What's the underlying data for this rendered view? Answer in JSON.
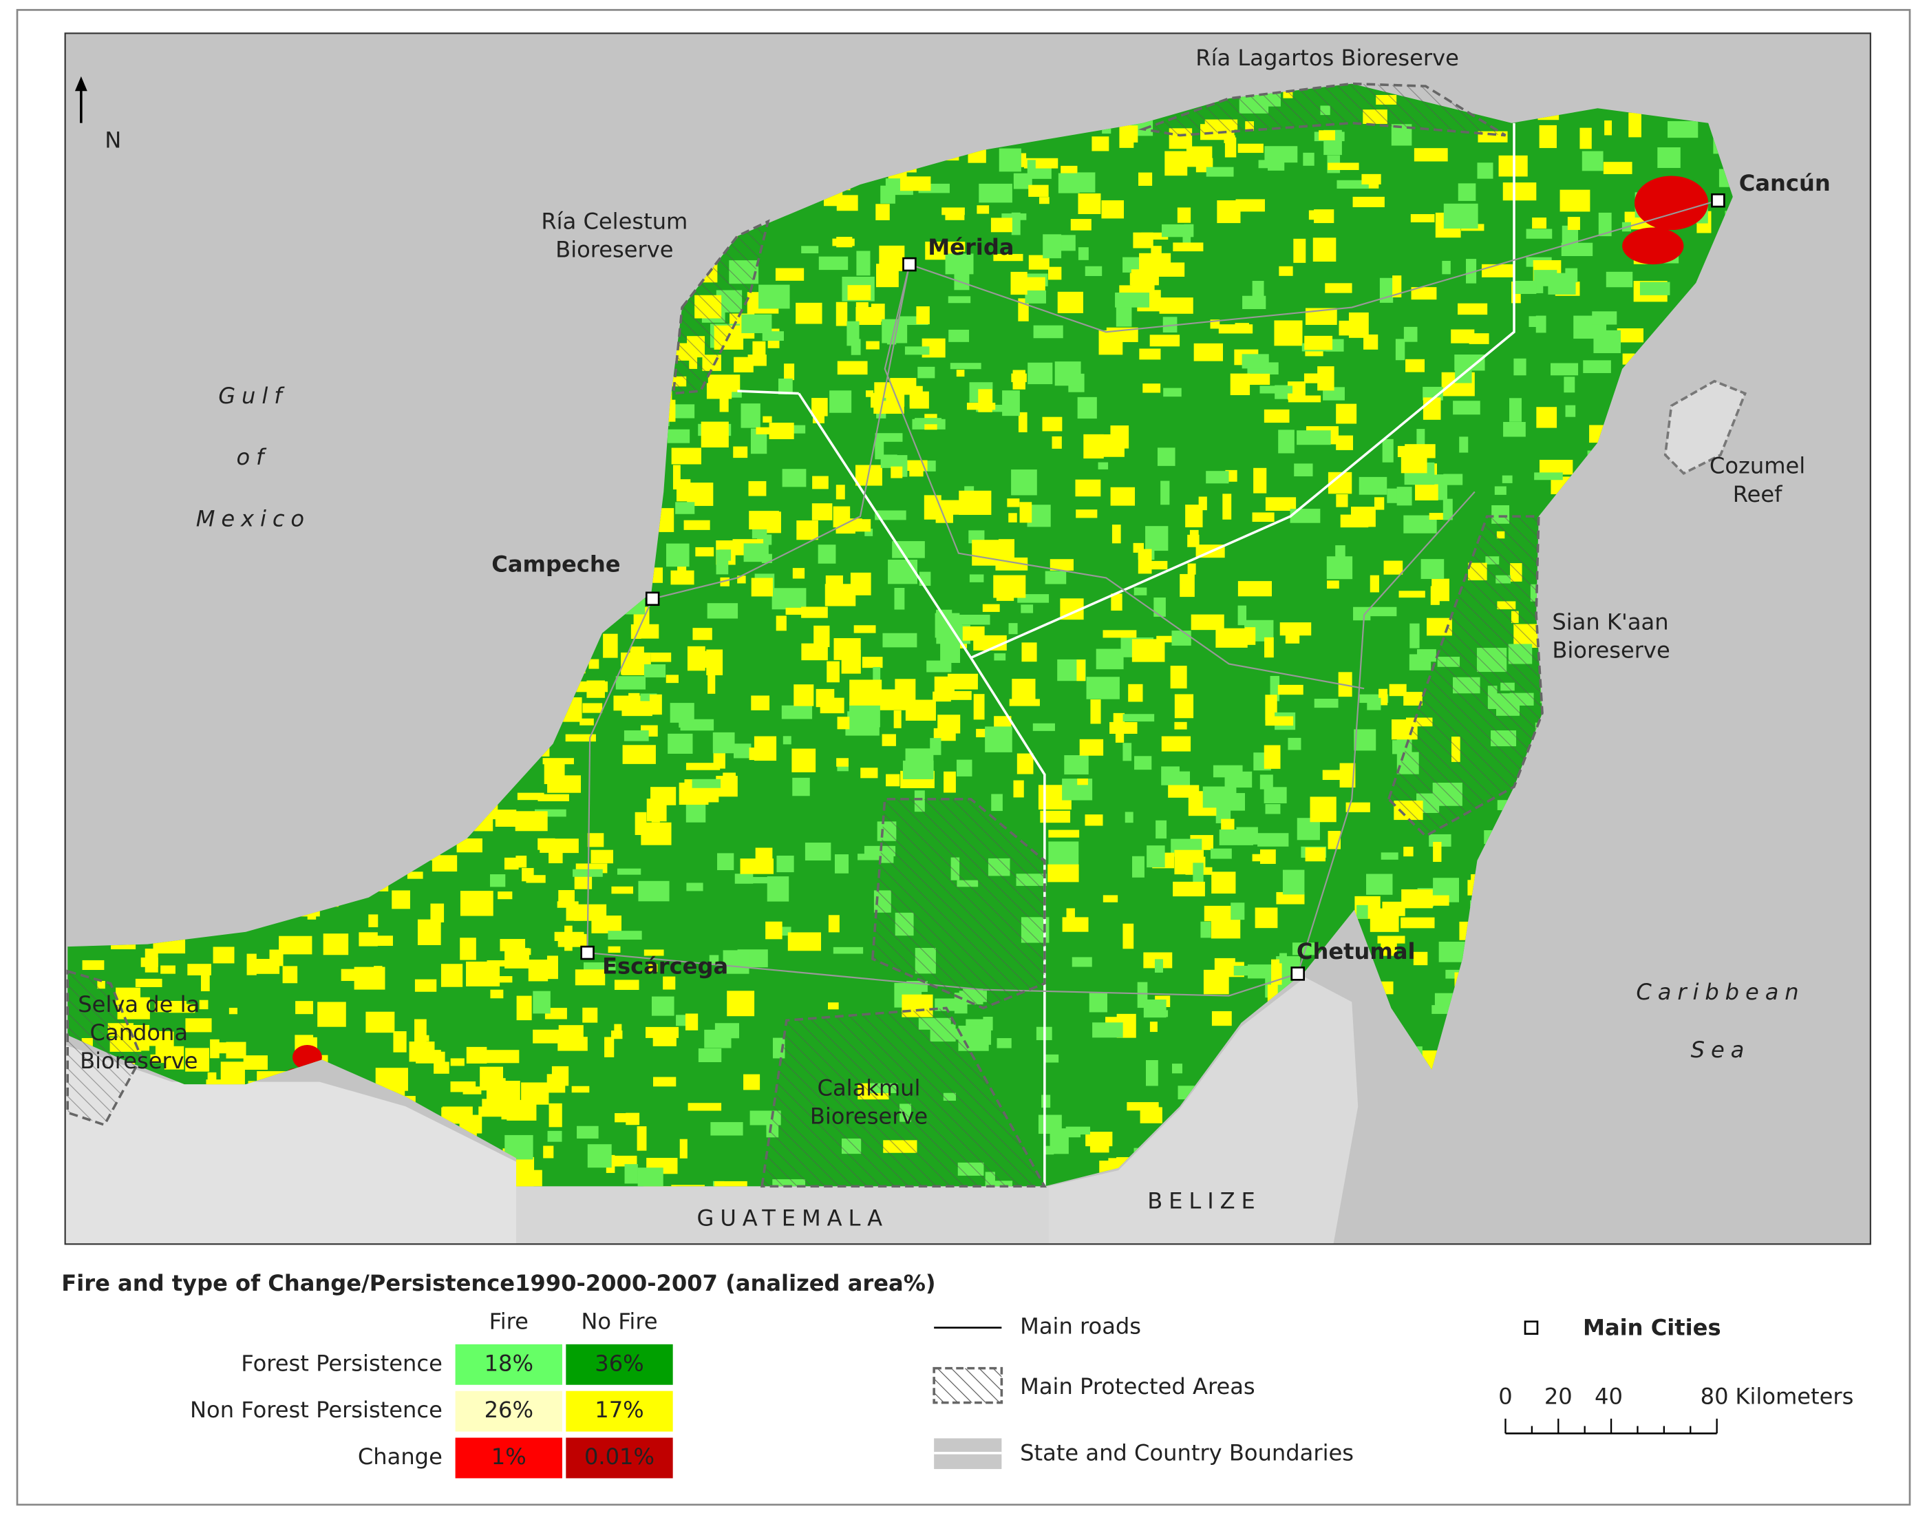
{
  "map": {
    "north_label": "N",
    "places": [
      {
        "lines": [
          "Ría Lagartos Bioreserve"
        ]
      },
      {
        "lines": [
          "Ría Celestum",
          "Bioreserve"
        ]
      },
      {
        "lines": [
          "Mérida"
        ]
      },
      {
        "lines": [
          "Cancún"
        ]
      },
      {
        "lines": [
          "Cozumel",
          "Reef"
        ]
      },
      {
        "lines": [
          "Campeche"
        ]
      },
      {
        "lines": [
          "Sian K'aan",
          "Bioreserve"
        ]
      },
      {
        "lines": [
          "Chetumal"
        ]
      },
      {
        "lines": [
          "Escárcega"
        ]
      },
      {
        "lines": [
          "Selva de la",
          "Candona",
          "Bioreserve"
        ]
      },
      {
        "lines": [
          "Calakmul",
          "Bioreserve"
        ]
      }
    ],
    "seas": [
      {
        "lines": [
          "Gulf",
          "of",
          "Mexico"
        ]
      },
      {
        "lines": [
          "Caribbean",
          "Sea"
        ]
      }
    ],
    "countries": [
      "GUATEMALA",
      "BELIZE"
    ]
  },
  "legend": {
    "title": "Fire and type of Change/Persistence1990-2000-2007 (analized area%)",
    "columns": [
      "Fire",
      "No Fire"
    ],
    "rows": [
      {
        "label": "Forest Persistence",
        "values": [
          "18%",
          "36%"
        ]
      },
      {
        "label": "Non Forest Persistence",
        "values": [
          "26%",
          "17%"
        ]
      },
      {
        "label": "Change",
        "values": [
          "1%",
          "0.01%"
        ]
      }
    ],
    "items": [
      "Main roads",
      "Main Protected Areas",
      "State and Country Boundaries"
    ],
    "cities_label": "Main Cities",
    "scale": {
      "ticks": [
        "0",
        "20",
        "40",
        "80"
      ],
      "unit": "Kilometers"
    }
  }
}
